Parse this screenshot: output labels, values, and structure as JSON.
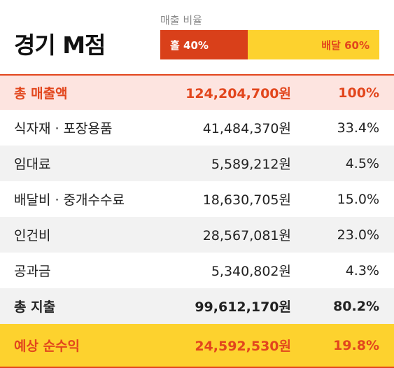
{
  "header": {
    "title": "경기 M점",
    "ratio_label": "매출 비율",
    "segments": [
      {
        "label": "홀 40%",
        "value": 40,
        "color": "#d9401a"
      },
      {
        "label": "배달 60%",
        "value": 60,
        "color": "#fdd22e"
      }
    ]
  },
  "table": {
    "rows": [
      [
        "총 매출액",
        "124,204,700원",
        "100%"
      ],
      [
        "식자재 · 포장용품",
        "41,484,370원",
        "33.4%"
      ],
      [
        "임대료",
        "5,589,212원",
        "4.5%"
      ],
      [
        "배달비 · 중개수수료",
        "18,630,705원",
        "15.0%"
      ],
      [
        "인건비",
        "28,567,081원",
        "23.0%"
      ],
      [
        "공과금",
        "5,340,802원",
        "4.3%"
      ],
      [
        "총 지출",
        "99,612,170원",
        "80.2%"
      ],
      [
        "예상 순수익",
        "24,592,530원",
        "19.8%"
      ]
    ]
  }
}
